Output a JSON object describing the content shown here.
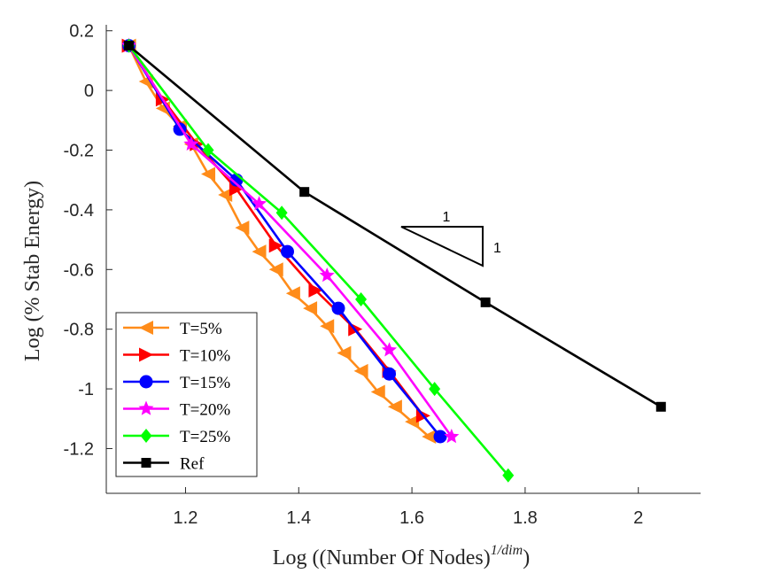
{
  "chart_data": {
    "type": "line",
    "xlabel_prefix": "Log",
    "xlabel_main": "(Number Of Nodes)",
    "xlabel_exp": "1/dim",
    "ylabel": "Log (% Stab Energy)",
    "xlim": [
      1.06,
      2.11
    ],
    "ylim": [
      -1.35,
      0.22
    ],
    "xticks": [
      1.2,
      1.4,
      1.6,
      1.8,
      2
    ],
    "xtick_labels": [
      "1.2",
      "1.4",
      "1.6",
      "1.8",
      "2"
    ],
    "yticks": [
      0.2,
      0,
      -0.2,
      -0.4,
      -0.6,
      -0.8,
      -1,
      -1.2
    ],
    "ytick_labels": [
      "0.2",
      "0",
      "-0.2",
      "-0.4",
      "-0.6",
      "-0.8",
      "-1",
      "-1.2"
    ],
    "grid": false,
    "legend_position": "bottom-left",
    "slope_triangle": {
      "horizontal_label": "1",
      "vertical_label": "1"
    },
    "series": [
      {
        "name": "T=5%",
        "color": "#FF8C1A",
        "marker": "triangle-left",
        "x": [
          1.1,
          1.13,
          1.16,
          1.19,
          1.21,
          1.24,
          1.27,
          1.3,
          1.33,
          1.36,
          1.39,
          1.42,
          1.45,
          1.48,
          1.51,
          1.54,
          1.57,
          1.6,
          1.63
        ],
        "y": [
          0.15,
          0.03,
          -0.06,
          -0.12,
          -0.18,
          -0.28,
          -0.35,
          -0.46,
          -0.54,
          -0.6,
          -0.68,
          -0.73,
          -0.79,
          -0.88,
          -0.94,
          -1.01,
          -1.06,
          -1.11,
          -1.16
        ]
      },
      {
        "name": "T=10%",
        "color": "#FF0000",
        "marker": "triangle-right",
        "x": [
          1.1,
          1.16,
          1.22,
          1.29,
          1.36,
          1.43,
          1.5,
          1.56,
          1.62
        ],
        "y": [
          0.15,
          -0.03,
          -0.18,
          -0.33,
          -0.52,
          -0.67,
          -0.8,
          -0.94,
          -1.09
        ]
      },
      {
        "name": "T=15%",
        "color": "#0000FF",
        "marker": "circle",
        "x": [
          1.1,
          1.19,
          1.29,
          1.38,
          1.47,
          1.56,
          1.65
        ],
        "y": [
          0.15,
          -0.13,
          -0.3,
          -0.54,
          -0.73,
          -0.95,
          -1.16
        ]
      },
      {
        "name": "T=20%",
        "color": "#FF00FF",
        "marker": "star",
        "x": [
          1.1,
          1.21,
          1.33,
          1.45,
          1.56,
          1.67
        ],
        "y": [
          0.15,
          -0.18,
          -0.38,
          -0.62,
          -0.87,
          -1.16
        ]
      },
      {
        "name": "T=25%",
        "color": "#00FF00",
        "marker": "diamond",
        "x": [
          1.1,
          1.24,
          1.37,
          1.51,
          1.64,
          1.77
        ],
        "y": [
          0.15,
          -0.2,
          -0.41,
          -0.7,
          -1.0,
          -1.29
        ]
      },
      {
        "name": "Ref",
        "color": "#000000",
        "marker": "square",
        "x": [
          1.1,
          1.41,
          1.73,
          2.04
        ],
        "y": [
          0.15,
          -0.34,
          -0.71,
          -1.06
        ]
      }
    ]
  }
}
